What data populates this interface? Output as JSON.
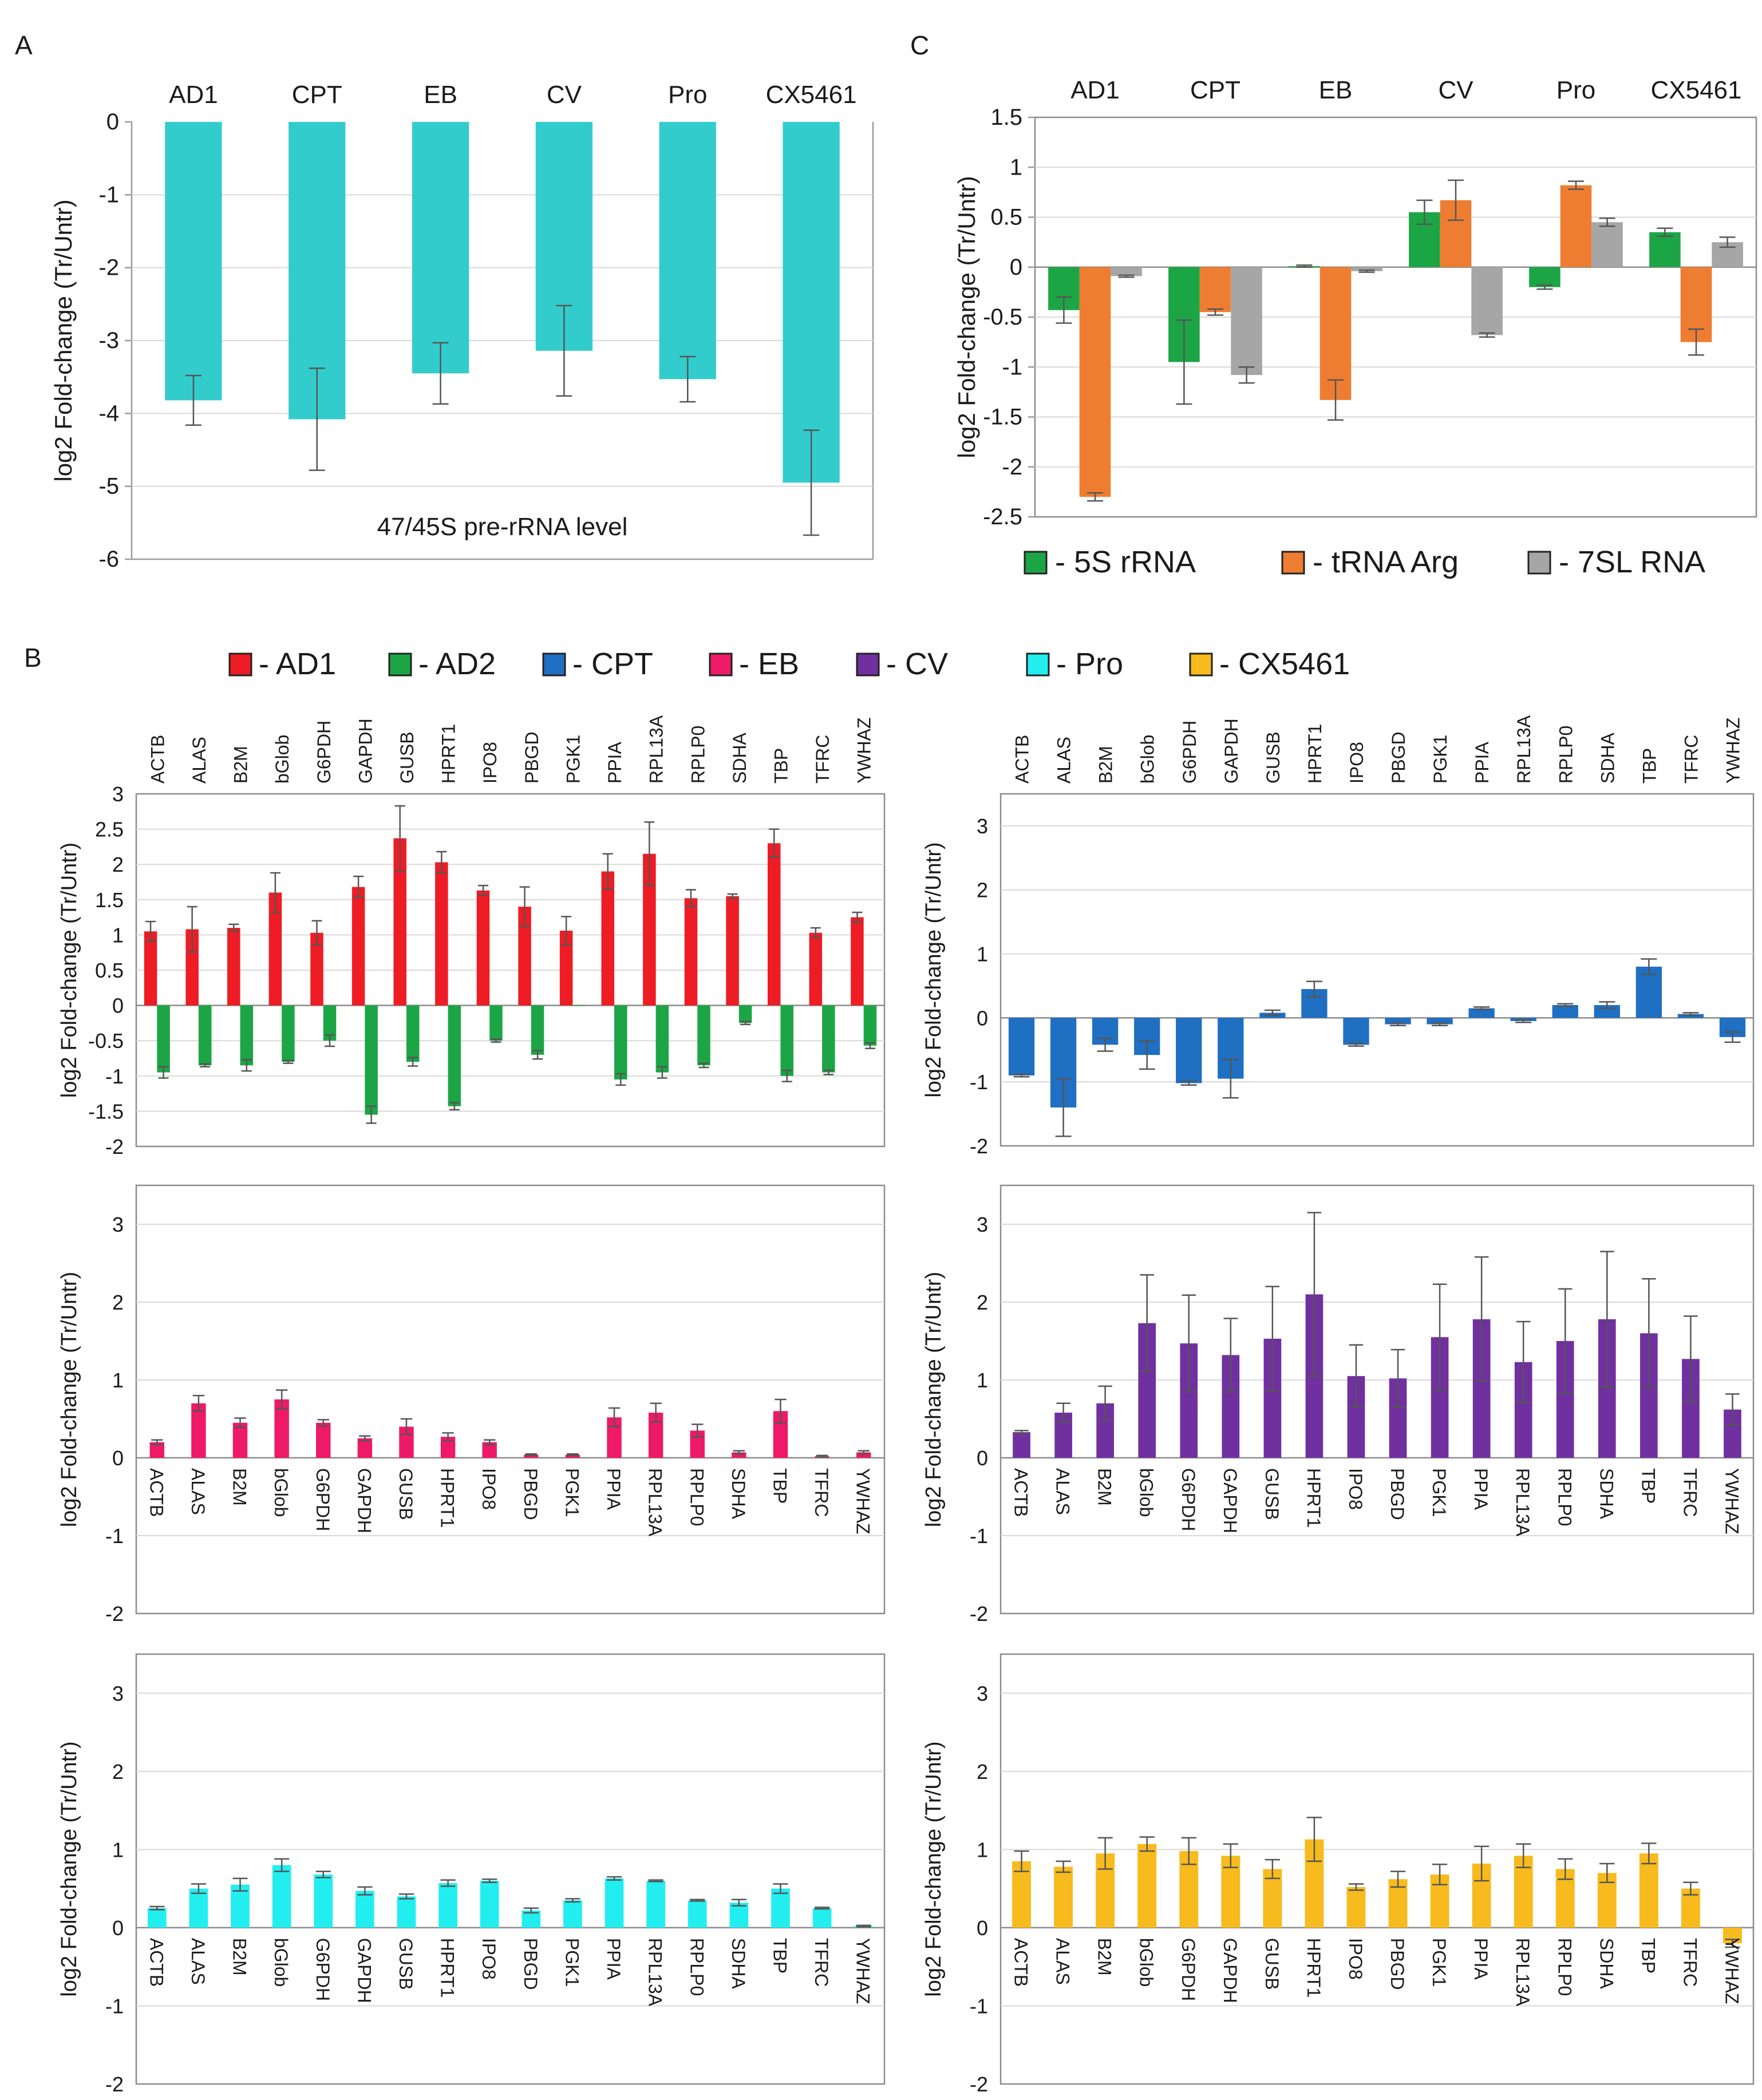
{
  "panels": {
    "A": "A",
    "B": "B",
    "C": "C"
  },
  "colors": {
    "AD1": "#ee1c24",
    "AD2": "#1ca545",
    "CPT": "#1f6fc2",
    "EB": "#ee1a67",
    "CV": "#7030a0",
    "Pro": "#22eef0",
    "CX5461": "#f7bb1e",
    "panelA": "#33cccc",
    "5S": "#1ca545",
    "tRNA": "#ee7d31",
    "7SL": "#a6a6a6"
  },
  "legend_B": [
    {
      "key": "AD1",
      "label": "- AD1"
    },
    {
      "key": "AD2",
      "label": "- AD2"
    },
    {
      "key": "CPT",
      "label": "- CPT"
    },
    {
      "key": "EB",
      "label": "- EB"
    },
    {
      "key": "CV",
      "label": "- CV"
    },
    {
      "key": "Pro",
      "label": "- Pro"
    },
    {
      "key": "CX5461",
      "label": "- CX5461"
    }
  ],
  "legend_C": [
    {
      "key": "5S",
      "label": "- 5S rRNA"
    },
    {
      "key": "tRNA",
      "label": "- tRNA Arg"
    },
    {
      "key": "7SL",
      "label": "- 7SL RNA"
    }
  ],
  "chart_data": [
    {
      "id": "A",
      "type": "bar",
      "ylabel": "log2 Fold-change (Tr/Untr)",
      "annotation": "47/45S pre-rRNA level",
      "categories": [
        "AD1",
        "CPT",
        "EB",
        "CV",
        "Pro",
        "CX5461"
      ],
      "ylim": [
        -6,
        0
      ],
      "yticks": [
        0,
        -1,
        -2,
        -3,
        -4,
        -5,
        -6
      ],
      "yticklabels": [
        "0",
        "-1",
        "-2",
        "-3",
        "-4",
        "-5",
        "-6"
      ],
      "series": [
        {
          "name": "47/45S pre-rRNA",
          "color_key": "panelA",
          "values": [
            -3.82,
            -4.08,
            -3.45,
            -3.14,
            -3.53,
            -4.95
          ],
          "errors": [
            0.34,
            0.7,
            0.42,
            0.62,
            0.31,
            0.72
          ]
        }
      ]
    },
    {
      "id": "C",
      "type": "bar",
      "ylabel": "log2 Fold-change (Tr/Untr)",
      "categories": [
        "AD1",
        "CPT",
        "EB",
        "CV",
        "Pro",
        "CX5461"
      ],
      "ylim": [
        -2.5,
        1.5
      ],
      "yticks": [
        1.5,
        1,
        0.5,
        0,
        -0.5,
        -1,
        -1.5,
        -2,
        -2.5
      ],
      "yticklabels": [
        "1.5",
        "1",
        "0.5",
        "0",
        "-0.5",
        "-1",
        "-1.5",
        "-2",
        "-2.5"
      ],
      "series": [
        {
          "name": "5S rRNA",
          "color_key": "5S",
          "values": [
            -0.43,
            -0.95,
            0.01,
            0.55,
            -0.2,
            0.35
          ],
          "errors": [
            0.13,
            0.42,
            0.01,
            0.12,
            0.02,
            0.04
          ]
        },
        {
          "name": "tRNA Arg",
          "color_key": "tRNA",
          "values": [
            -2.3,
            -0.45,
            -1.33,
            0.67,
            0.82,
            -0.75
          ],
          "errors": [
            0.04,
            0.03,
            0.2,
            0.2,
            0.04,
            0.13
          ]
        },
        {
          "name": "7SL RNA",
          "color_key": "7SL",
          "values": [
            -0.09,
            -1.08,
            -0.04,
            -0.68,
            0.45,
            0.25
          ],
          "errors": [
            0.01,
            0.08,
            0.01,
            0.02,
            0.04,
            0.05
          ]
        }
      ]
    },
    {
      "id": "B1",
      "type": "bar",
      "ylabel": "log2 Fold-change (Tr/Untr)",
      "label_pos": "top",
      "categories": [
        "ACTB",
        "ALAS",
        "B2M",
        "bGlob",
        "G6PDH",
        "GAPDH",
        "GUSB",
        "HPRT1",
        "IPO8",
        "PBGD",
        "PGK1",
        "PPIA",
        "RPL13A",
        "RPLP0",
        "SDHA",
        "TBP",
        "TFRC",
        "YWHAZ"
      ],
      "ylim": [
        -2,
        3
      ],
      "yticks": [
        3,
        2.5,
        2,
        1.5,
        1,
        0.5,
        0,
        -0.5,
        -1,
        -1.5,
        -2
      ],
      "yticklabels": [
        "3",
        "2.5",
        "2",
        "1.5",
        "1",
        "0.5",
        "0",
        "-0.5",
        "-1",
        "-1.5",
        "-2"
      ],
      "series": [
        {
          "name": "AD1",
          "color_key": "AD1",
          "values": [
            1.05,
            1.08,
            1.1,
            1.6,
            1.03,
            1.68,
            2.37,
            2.03,
            1.63,
            1.4,
            1.06,
            1.9,
            2.15,
            1.52,
            1.55,
            2.3,
            1.03,
            1.25
          ],
          "errors": [
            0.14,
            0.32,
            0.05,
            0.28,
            0.17,
            0.15,
            0.46,
            0.15,
            0.07,
            0.28,
            0.2,
            0.25,
            0.45,
            0.12,
            0.03,
            0.2,
            0.07,
            0.07
          ]
        },
        {
          "name": "AD2",
          "color_key": "AD2",
          "values": [
            -0.95,
            -0.85,
            -0.85,
            -0.8,
            -0.5,
            -1.55,
            -0.8,
            -1.43,
            -0.5,
            -0.7,
            0.0,
            -1.05,
            -0.95,
            -0.85,
            -0.25,
            -1.0,
            -0.95,
            -0.57
          ],
          "errors": [
            0.08,
            0.02,
            0.08,
            0.02,
            0.08,
            0.12,
            0.06,
            0.05,
            0.02,
            0.06,
            0.0,
            0.08,
            0.08,
            0.03,
            0.02,
            0.08,
            0.03,
            0.04
          ]
        }
      ]
    },
    {
      "id": "B2",
      "type": "bar",
      "ylabel": "log2 Fold-change (Tr/Untr)",
      "label_pos": "top",
      "categories": [
        "ACTB",
        "ALAS",
        "B2M",
        "bGlob",
        "G6PDH",
        "GAPDH",
        "GUSB",
        "HPRT1",
        "IPO8",
        "PBGD",
        "PGK1",
        "PPIA",
        "RPL13A",
        "RPLP0",
        "SDHA",
        "TBP",
        "TFRC",
        "YWHAZ"
      ],
      "ylim": [
        -2,
        3.5
      ],
      "yticks": [
        3,
        2,
        1,
        0,
        -1,
        -2
      ],
      "yticklabels": [
        "3",
        "2",
        "1",
        "0",
        "-1",
        "-2"
      ],
      "series": [
        {
          "name": "CPT",
          "color_key": "CPT",
          "values": [
            -0.9,
            -1.4,
            -0.42,
            -0.58,
            -1.02,
            -0.95,
            0.08,
            0.45,
            -0.42,
            -0.1,
            -0.1,
            0.15,
            -0.05,
            0.2,
            0.2,
            0.8,
            0.06,
            -0.3
          ],
          "errors": [
            0.02,
            0.45,
            0.1,
            0.22,
            0.03,
            0.3,
            0.04,
            0.12,
            0.02,
            0.02,
            0.02,
            0.02,
            0.02,
            0.02,
            0.05,
            0.12,
            0.02,
            0.08
          ]
        }
      ]
    },
    {
      "id": "B3",
      "type": "bar",
      "ylabel": "log2 Fold-change (Tr/Untr)",
      "label_pos": "below_zero",
      "categories": [
        "ACTB",
        "ALAS",
        "B2M",
        "bGlob",
        "G6PDH",
        "GAPDH",
        "GUSB",
        "HPRT1",
        "IPO8",
        "PBGD",
        "PGK1",
        "PPIA",
        "RPL13A",
        "RPLP0",
        "SDHA",
        "TBP",
        "TFRC",
        "YWHAZ"
      ],
      "ylim": [
        -2,
        3.5
      ],
      "yticks": [
        3,
        2,
        1,
        0,
        -1,
        -2
      ],
      "yticklabels": [
        "3",
        "2",
        "1",
        "0",
        "-1",
        "-2"
      ],
      "series": [
        {
          "name": "EB",
          "color_key": "EB",
          "values": [
            0.2,
            0.7,
            0.45,
            0.75,
            0.45,
            0.25,
            0.4,
            0.27,
            0.2,
            0.04,
            0.04,
            0.52,
            0.58,
            0.35,
            0.07,
            0.6,
            0.02,
            0.07
          ],
          "errors": [
            0.03,
            0.1,
            0.06,
            0.12,
            0.04,
            0.03,
            0.1,
            0.05,
            0.03,
            0.01,
            0.01,
            0.12,
            0.12,
            0.08,
            0.02,
            0.15,
            0.01,
            0.02
          ]
        }
      ]
    },
    {
      "id": "B4",
      "type": "bar",
      "ylabel": "log2 Fold-change (Tr/Untr)",
      "label_pos": "below_zero",
      "categories": [
        "ACTB",
        "ALAS",
        "B2M",
        "bGlob",
        "G6PDH",
        "GAPDH",
        "GUSB",
        "HPRT1",
        "IPO8",
        "PBGD",
        "PGK1",
        "PPIA",
        "RPL13A",
        "RPLP0",
        "SDHA",
        "TBP",
        "TFRC",
        "YWHAZ"
      ],
      "ylim": [
        -2,
        3.5
      ],
      "yticks": [
        3,
        2,
        1,
        0,
        -1,
        -2
      ],
      "yticklabels": [
        "3",
        "2",
        "1",
        "0",
        "-1",
        "-2"
      ],
      "series": [
        {
          "name": "CV",
          "color_key": "CV",
          "values": [
            0.33,
            0.58,
            0.7,
            1.73,
            1.47,
            1.32,
            1.53,
            2.1,
            1.05,
            1.02,
            1.55,
            1.78,
            1.23,
            1.5,
            1.78,
            1.6,
            1.27,
            0.62
          ],
          "errors": [
            0.02,
            0.12,
            0.22,
            0.62,
            0.62,
            0.47,
            0.67,
            1.05,
            0.4,
            0.37,
            0.68,
            0.8,
            0.52,
            0.67,
            0.87,
            0.7,
            0.55,
            0.2
          ]
        }
      ]
    },
    {
      "id": "B5",
      "type": "bar",
      "ylabel": "log2 Fold-change (Tr/Untr)",
      "label_pos": "below_zero",
      "categories": [
        "ACTB",
        "ALAS",
        "B2M",
        "bGlob",
        "G6PDH",
        "GAPDH",
        "GUSB",
        "HPRT1",
        "IPO8",
        "PBGD",
        "PGK1",
        "PPIA",
        "RPL13A",
        "RPLP0",
        "SDHA",
        "TBP",
        "TFRC",
        "YWHAZ"
      ],
      "ylim": [
        -2,
        3.5
      ],
      "yticks": [
        3,
        2,
        1,
        0,
        -1,
        -2
      ],
      "yticklabels": [
        "3",
        "2",
        "1",
        "0",
        "-1",
        "-2"
      ],
      "series": [
        {
          "name": "Pro",
          "color_key": "Pro",
          "values": [
            0.25,
            0.5,
            0.55,
            0.8,
            0.68,
            0.47,
            0.4,
            0.57,
            0.6,
            0.22,
            0.35,
            0.63,
            0.6,
            0.35,
            0.32,
            0.5,
            0.25,
            0.02
          ],
          "errors": [
            0.02,
            0.06,
            0.08,
            0.08,
            0.04,
            0.05,
            0.03,
            0.04,
            0.02,
            0.03,
            0.02,
            0.02,
            0.01,
            0.01,
            0.04,
            0.06,
            0.01,
            0.01
          ]
        }
      ]
    },
    {
      "id": "B6",
      "type": "bar",
      "ylabel": "log2 Fold-change (Tr/Untr)",
      "label_pos": "below_zero",
      "categories": [
        "ACTB",
        "ALAS",
        "B2M",
        "bGlob",
        "G6PDH",
        "GAPDH",
        "GUSB",
        "HPRT1",
        "IPO8",
        "PBGD",
        "PGK1",
        "PPIA",
        "RPL13A",
        "RPLP0",
        "SDHA",
        "TBP",
        "TFRC",
        "YWHAZ"
      ],
      "ylim": [
        -2,
        3.5
      ],
      "yticks": [
        3,
        2,
        1,
        0,
        -1,
        -2
      ],
      "yticklabels": [
        "3",
        "2",
        "1",
        "0",
        "-1",
        "-2"
      ],
      "series": [
        {
          "name": "CX5461",
          "color_key": "CX5461",
          "values": [
            0.85,
            0.78,
            0.95,
            1.07,
            0.98,
            0.92,
            0.75,
            1.13,
            0.52,
            0.62,
            0.68,
            0.82,
            0.92,
            0.75,
            0.7,
            0.95,
            0.5,
            -0.2
          ],
          "errors": [
            0.13,
            0.07,
            0.2,
            0.09,
            0.17,
            0.15,
            0.12,
            0.28,
            0.04,
            0.1,
            0.13,
            0.22,
            0.15,
            0.13,
            0.12,
            0.13,
            0.08,
            0.05
          ]
        }
      ]
    }
  ]
}
